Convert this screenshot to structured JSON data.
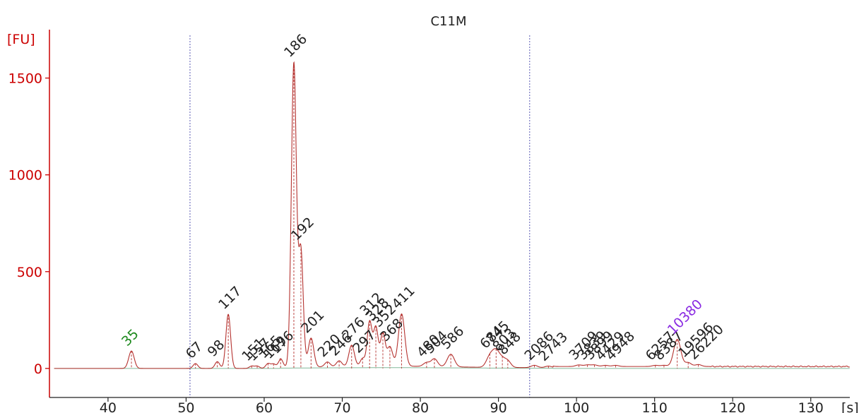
{
  "chart_data": {
    "type": "line",
    "title": "C11M",
    "ylabel": "[FU]",
    "xlabel": "[s]",
    "xlim": [
      32.5,
      135
    ],
    "ylim": [
      -150,
      1750
    ],
    "x_ticks": [
      40,
      50,
      60,
      70,
      80,
      90,
      100,
      110,
      120,
      130
    ],
    "y_ticks": [
      0,
      500,
      1000,
      1500
    ],
    "x_tick_labels": [
      "40",
      "50",
      "60",
      "70",
      "80",
      "90",
      "100",
      "110",
      "120",
      "130"
    ],
    "y_tick_labels": [
      "0",
      "500",
      "1000",
      "1500"
    ],
    "markers": [
      50.5,
      94.0
    ],
    "colors": {
      "trace": "#b5322f",
      "axis": "#cc0000",
      "label": "#222222",
      "lower_marker": "#1e8a1e",
      "upper_marker": "#8a2be2",
      "guide": "#5a5ab4",
      "baseline": "#2e8b57"
    },
    "peaks": [
      {
        "x": 43.0,
        "h": 90,
        "w": 0.35,
        "label": "35",
        "marker": "lower"
      },
      {
        "x": 51.2,
        "h": 25,
        "w": 0.3,
        "label": "67"
      },
      {
        "x": 54.0,
        "h": 35,
        "w": 0.3,
        "label": "98"
      },
      {
        "x": 55.4,
        "h": 280,
        "w": 0.3,
        "label": "117"
      },
      {
        "x": 58.4,
        "h": 12,
        "w": 0.3,
        "label": "151"
      },
      {
        "x": 59.1,
        "h": 12,
        "w": 0.3,
        "label": "157"
      },
      {
        "x": 60.5,
        "h": 25,
        "w": 0.3,
        "label": "165"
      },
      {
        "x": 61.2,
        "h": 22,
        "w": 0.3,
        "label": "169"
      },
      {
        "x": 62.1,
        "h": 45,
        "w": 0.3,
        "label": "176"
      },
      {
        "x": 63.8,
        "h": 1570,
        "w": 0.32,
        "label": "186"
      },
      {
        "x": 64.7,
        "h": 600,
        "w": 0.3,
        "label": "192"
      },
      {
        "x": 66.0,
        "h": 150,
        "w": 0.35,
        "label": "201"
      },
      {
        "x": 68.1,
        "h": 25,
        "w": 0.35,
        "label": "220"
      },
      {
        "x": 69.6,
        "h": 30,
        "w": 0.35,
        "label": "246"
      },
      {
        "x": 71.2,
        "h": 110,
        "w": 0.35,
        "label": "276"
      },
      {
        "x": 72.6,
        "h": 40,
        "w": 0.3,
        "label": "297"
      },
      {
        "x": 73.5,
        "h": 230,
        "w": 0.3,
        "label": "312"
      },
      {
        "x": 74.3,
        "h": 200,
        "w": 0.3,
        "label": "328"
      },
      {
        "x": 75.2,
        "h": 170,
        "w": 0.3,
        "label": "352"
      },
      {
        "x": 76.1,
        "h": 100,
        "w": 0.35,
        "label": "368"
      },
      {
        "x": 77.6,
        "h": 270,
        "w": 0.4,
        "label": "411"
      },
      {
        "x": 80.8,
        "h": 20,
        "w": 0.4,
        "label": "480"
      },
      {
        "x": 81.8,
        "h": 40,
        "w": 0.4,
        "label": "504"
      },
      {
        "x": 83.9,
        "h": 65,
        "w": 0.45,
        "label": "586"
      },
      {
        "x": 88.9,
        "h": 55,
        "w": 0.45,
        "label": "684"
      },
      {
        "x": 89.7,
        "h": 80,
        "w": 0.45,
        "label": "745"
      },
      {
        "x": 90.5,
        "h": 35,
        "w": 0.4,
        "label": "803"
      },
      {
        "x": 91.2,
        "h": 32,
        "w": 0.4,
        "label": "848"
      },
      {
        "x": 94.6,
        "h": 12,
        "w": 0.4,
        "label": "2086"
      },
      {
        "x": 96.4,
        "h": 8,
        "w": 0.4,
        "label": "2743"
      },
      {
        "x": 100.3,
        "h": 8,
        "w": 0.4,
        "label": "3709"
      },
      {
        "x": 101.4,
        "h": 8,
        "w": 0.4,
        "label": "3839"
      },
      {
        "x": 102.3,
        "h": 8,
        "w": 0.4,
        "label": "3899"
      },
      {
        "x": 103.7,
        "h": 6,
        "w": 0.4,
        "label": "4429"
      },
      {
        "x": 105.0,
        "h": 6,
        "w": 0.4,
        "label": "4948"
      },
      {
        "x": 110.1,
        "h": 6,
        "w": 0.4,
        "label": "6257"
      },
      {
        "x": 111.2,
        "h": 6,
        "w": 0.4,
        "label": "8387"
      },
      {
        "x": 112.9,
        "h": 140,
        "w": 0.45,
        "label": "10380",
        "marker": "upper"
      },
      {
        "x": 114.3,
        "h": 20,
        "w": 0.4,
        "label": "19596"
      },
      {
        "x": 115.6,
        "h": 10,
        "w": 0.4,
        "label": "26220"
      }
    ]
  }
}
